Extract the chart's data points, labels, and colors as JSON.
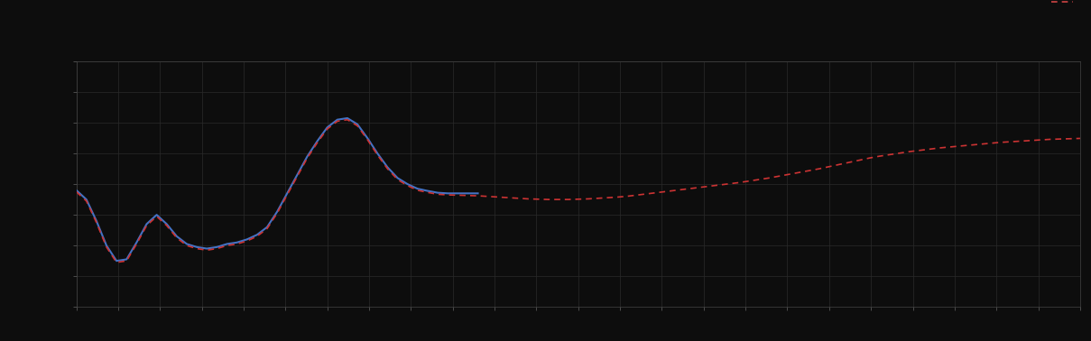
{
  "background_color": "#0d0d0d",
  "plot_bg_color": "#0d0d0d",
  "grid_color": "#2a2a2a",
  "line1_color": "#4472c4",
  "line2_color": "#cc3333",
  "legend_line1_color": "#4472c4",
  "legend_line2_color": "#cc4444",
  "xlim": [
    0,
    100
  ],
  "ylim": [
    0,
    8
  ],
  "ytick_count": 9,
  "xtick_count": 25,
  "line1_x": [
    0,
    1,
    2,
    3,
    4,
    5,
    6,
    7,
    8,
    9,
    10,
    11,
    12,
    13,
    14,
    15,
    16,
    17,
    18,
    19,
    20,
    21,
    22,
    23,
    24,
    25,
    26,
    27,
    28,
    29,
    30,
    31,
    32,
    33,
    34,
    35,
    36,
    37,
    38,
    39,
    40
  ],
  "line1_y": [
    3.8,
    3.5,
    2.8,
    2.0,
    1.5,
    1.55,
    2.1,
    2.7,
    3.0,
    2.7,
    2.3,
    2.05,
    1.95,
    1.9,
    1.95,
    2.05,
    2.1,
    2.2,
    2.35,
    2.6,
    3.1,
    3.7,
    4.3,
    4.9,
    5.4,
    5.85,
    6.1,
    6.15,
    5.95,
    5.5,
    5.0,
    4.55,
    4.2,
    4.0,
    3.85,
    3.78,
    3.72,
    3.7,
    3.7,
    3.7,
    3.7
  ],
  "line2_x": [
    0,
    1,
    2,
    3,
    4,
    5,
    6,
    7,
    8,
    9,
    10,
    11,
    12,
    13,
    14,
    15,
    16,
    17,
    18,
    19,
    20,
    21,
    22,
    23,
    24,
    25,
    26,
    27,
    28,
    29,
    30,
    31,
    32,
    33,
    34,
    35,
    36,
    37,
    38,
    39,
    40,
    41,
    42,
    43,
    44,
    45,
    46,
    47,
    48,
    49,
    50,
    51,
    52,
    53,
    54,
    55,
    56,
    57,
    58,
    59,
    60,
    61,
    62,
    63,
    64,
    65,
    66,
    67,
    68,
    69,
    70,
    71,
    72,
    73,
    74,
    75,
    76,
    77,
    78,
    79,
    80,
    81,
    82,
    83,
    84,
    85,
    86,
    87,
    88,
    89,
    90,
    91,
    92,
    93,
    94,
    95,
    96,
    97,
    98,
    99,
    100
  ],
  "line2_y": [
    3.75,
    3.45,
    2.75,
    1.95,
    1.45,
    1.5,
    2.05,
    2.65,
    2.95,
    2.65,
    2.25,
    2.0,
    1.9,
    1.85,
    1.9,
    2.0,
    2.05,
    2.15,
    2.3,
    2.55,
    3.05,
    3.65,
    4.25,
    4.85,
    5.35,
    5.8,
    6.05,
    6.1,
    5.9,
    5.45,
    4.95,
    4.5,
    4.15,
    3.95,
    3.8,
    3.73,
    3.67,
    3.65,
    3.64,
    3.63,
    3.62,
    3.6,
    3.58,
    3.56,
    3.54,
    3.52,
    3.51,
    3.5,
    3.5,
    3.5,
    3.51,
    3.52,
    3.54,
    3.56,
    3.58,
    3.61,
    3.65,
    3.69,
    3.73,
    3.77,
    3.81,
    3.85,
    3.89,
    3.93,
    3.97,
    4.01,
    4.05,
    4.1,
    4.15,
    4.2,
    4.26,
    4.32,
    4.38,
    4.44,
    4.5,
    4.57,
    4.64,
    4.71,
    4.78,
    4.85,
    4.91,
    4.96,
    5.01,
    5.06,
    5.1,
    5.14,
    5.18,
    5.21,
    5.24,
    5.27,
    5.3,
    5.33,
    5.36,
    5.38,
    5.4,
    5.42,
    5.44,
    5.46,
    5.47,
    5.48,
    5.49
  ]
}
